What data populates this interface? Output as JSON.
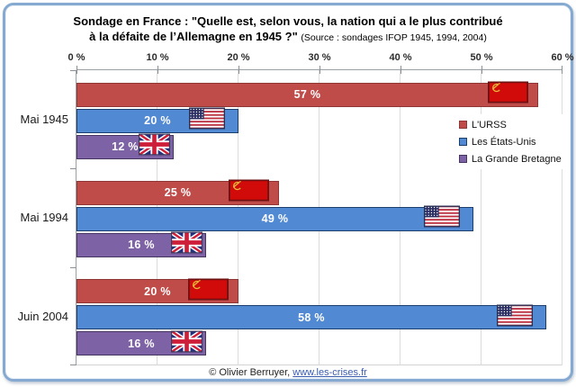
{
  "title": {
    "line1": "Sondage en France : \"Quelle est, selon vous, la nation qui a le plus contribué",
    "line2": "à la défaite de l’Allemagne en 1945 ?\"",
    "source": "(Source : sondages IFOP 1945, 1994, 2004)"
  },
  "chart_data": {
    "type": "bar",
    "orientation": "horizontal",
    "categories": [
      "Mai 1945",
      "Mai 1994",
      "Juin 2004"
    ],
    "series": [
      {
        "name": "L'URSS",
        "color": "#BF4C49",
        "border_color": "#8E3734",
        "flag": "ussr",
        "values": [
          57,
          25,
          20
        ]
      },
      {
        "name": "Les États-Unis",
        "color": "#5289D3",
        "border_color": "#1C3E6E",
        "flag": "usa",
        "values": [
          20,
          49,
          58
        ]
      },
      {
        "name": "La Grande Bretagne",
        "color": "#7D63A5",
        "border_color": "#473561",
        "flag": "uk",
        "values": [
          12,
          16,
          16
        ]
      }
    ],
    "x_ticks": [
      "0 %",
      "10 %",
      "20 %",
      "30 %",
      "40 %",
      "50 %",
      "60 %"
    ],
    "xlim": [
      0,
      60
    ],
    "label_suffix": " %",
    "grid": true,
    "legend_position": "right-inside",
    "value_labels": "white-bold-centered"
  },
  "flags": {
    "ussr": {
      "field": "#D10A0A",
      "border": "#6E1112",
      "emblem": "#E7B73B"
    },
    "usa": {
      "red": "#C0313F",
      "white": "#FFFFFF",
      "canton": "#2B2F63",
      "border": "#263055"
    },
    "uk": {
      "blue": "#23307E",
      "white": "#FFFFFF",
      "red": "#CE1F3A",
      "border": "#3A3A5C"
    }
  },
  "frame": {
    "border_color": "#85A9D0"
  },
  "footer": {
    "copyright": "© Olivier Berruyer,",
    "link_text": "www.les-crises.fr",
    "link_color": "#3A5DAE"
  }
}
